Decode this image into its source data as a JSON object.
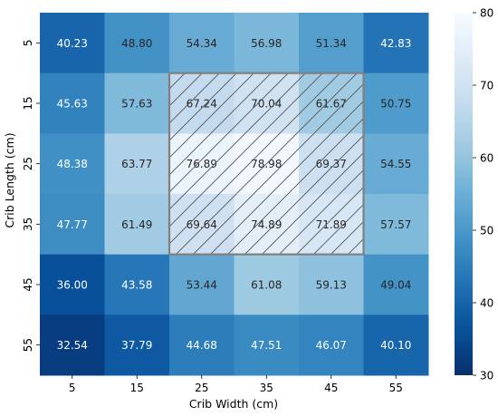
{
  "chart_data": {
    "type": "heatmap",
    "title": "",
    "xlabel": "Crib Width (cm)",
    "ylabel": "Crib Length (cm)",
    "x_categories": [
      "5",
      "15",
      "25",
      "35",
      "45",
      "55"
    ],
    "y_categories": [
      "5",
      "15",
      "25",
      "35",
      "45",
      "55"
    ],
    "values": [
      [
        40.23,
        48.8,
        54.34,
        56.98,
        51.34,
        42.83
      ],
      [
        45.63,
        57.63,
        67.24,
        70.04,
        61.67,
        50.75
      ],
      [
        48.38,
        63.77,
        76.89,
        78.98,
        69.37,
        54.55
      ],
      [
        47.77,
        61.49,
        69.64,
        74.89,
        71.89,
        57.57
      ],
      [
        36.0,
        43.58,
        53.44,
        61.08,
        59.13,
        49.04
      ],
      [
        32.54,
        37.79,
        44.68,
        47.51,
        46.07,
        40.1
      ]
    ],
    "value_format": "0.00",
    "colormap": "Blues_r",
    "colorbar": {
      "range": [
        30,
        80
      ],
      "ticks": [
        "30",
        "40",
        "50",
        "60",
        "70",
        "80"
      ]
    },
    "highlight_region": {
      "x_categories": [
        "25",
        "35",
        "45"
      ],
      "y_categories": [
        "15",
        "25",
        "35"
      ],
      "style": "hatched",
      "border_color": "#808080"
    }
  }
}
